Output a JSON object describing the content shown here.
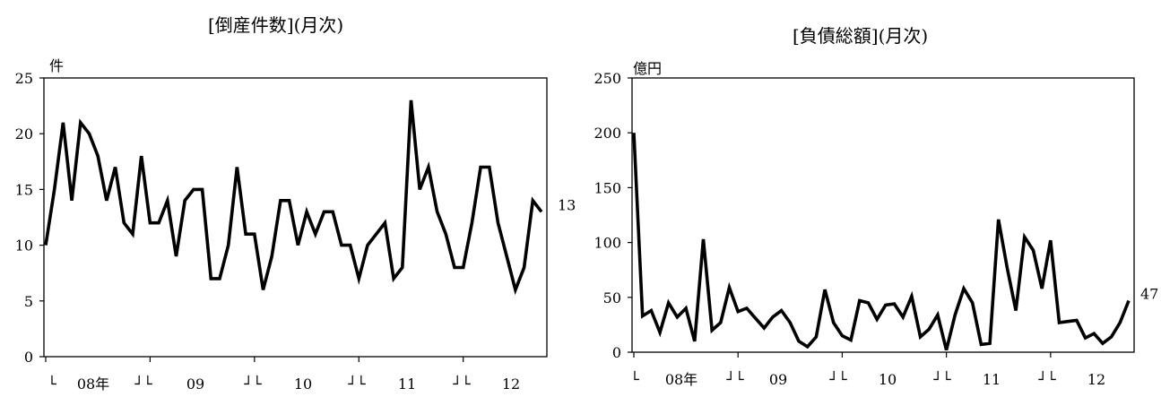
{
  "chart_data": [
    {
      "type": "line",
      "title": "[倒産件数](月次)",
      "ylabel": "件",
      "ylim": [
        0,
        25
      ],
      "yticks": [
        0,
        5,
        10,
        15,
        20,
        25
      ],
      "x_labels": [
        "└",
        "08年",
        "┘└",
        "09",
        "┘└",
        "10",
        "┘└",
        "11",
        "┘└",
        "12"
      ],
      "end_label": "13",
      "series": [
        {
          "values": [
            10,
            15,
            21,
            14,
            21,
            20,
            18,
            14,
            17,
            12,
            11,
            18,
            12,
            12,
            14,
            9,
            14,
            15,
            15,
            7,
            7,
            10,
            17,
            11,
            11,
            6,
            9,
            14,
            14,
            10,
            13,
            11,
            13,
            13,
            10,
            10,
            7,
            10,
            11,
            12,
            7,
            8,
            23,
            15,
            17,
            13,
            11,
            8,
            8,
            12,
            17,
            17,
            12,
            9,
            6,
            8,
            14,
            13
          ]
        }
      ]
    },
    {
      "type": "line",
      "title": "[負債総額](月次)",
      "ylabel": "億円",
      "ylim": [
        0,
        250
      ],
      "yticks": [
        0,
        50,
        100,
        150,
        200,
        250
      ],
      "x_labels": [
        "└",
        "08年",
        "┘└",
        "09",
        "┘└",
        "10",
        "┘└",
        "11",
        "┘└",
        "12"
      ],
      "end_label": "47",
      "series": [
        {
          "values": [
            200,
            33,
            38,
            18,
            45,
            32,
            40,
            10,
            103,
            20,
            27,
            59,
            37,
            40,
            31,
            22,
            32,
            38,
            27,
            10,
            5,
            14,
            57,
            27,
            15,
            11,
            47,
            45,
            30,
            43,
            44,
            32,
            51,
            14,
            21,
            34,
            2,
            34,
            58,
            45,
            7,
            8,
            121,
            77,
            38,
            105,
            93,
            58,
            102,
            27,
            28,
            29,
            13,
            17,
            8,
            14,
            27,
            47
          ]
        }
      ]
    }
  ]
}
